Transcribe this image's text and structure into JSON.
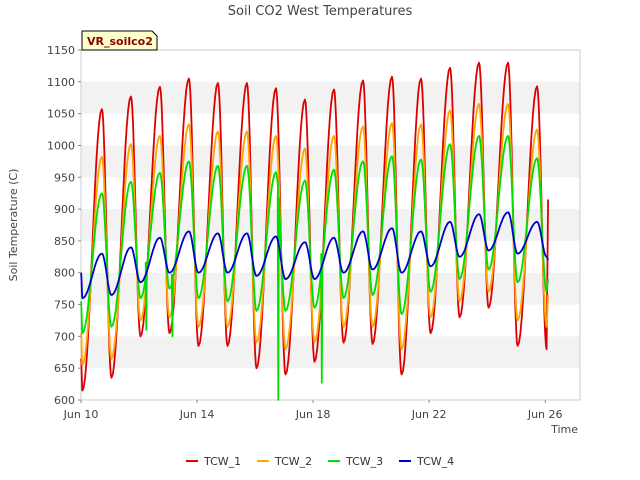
{
  "chart_data": {
    "type": "line",
    "title": "Soil CO2 West Temperatures",
    "xlabel": "Time",
    "ylabel": "Soil Temperature (C)",
    "site_tag": "VR_soilco2",
    "x_unit": "days since Jun 10",
    "xlim": [
      0,
      17.2
    ],
    "ylim": [
      600,
      1150
    ],
    "x_ticks": [
      {
        "label": "Jun 10",
        "value": 0
      },
      {
        "label": "Jun 14",
        "value": 4
      },
      {
        "label": "Jun 18",
        "value": 8
      },
      {
        "label": "Jun 22",
        "value": 12
      },
      {
        "label": "Jun 26",
        "value": 16
      }
    ],
    "y_ticks": [
      600,
      650,
      700,
      750,
      800,
      850,
      900,
      950,
      1000,
      1050,
      1100,
      1150
    ],
    "grid": "horizontal alternating bands",
    "legend_position": "bottom",
    "daily_extremes_note": "daily minima at ~day+0.05, maxima at ~day+0.72",
    "series": [
      {
        "name": "TCW_1",
        "color": "#dd0000",
        "start_value": 665,
        "minima": [
          615,
          635,
          700,
          705,
          685,
          685,
          650,
          640,
          660,
          690,
          688,
          640,
          705,
          730,
          745,
          685,
          680
        ],
        "maxima": [
          1057,
          1077,
          1092,
          1105,
          1098,
          1098,
          1090,
          1072,
          1088,
          1102,
          1108,
          1105,
          1122,
          1130,
          1130,
          1093
        ],
        "end_value": 915
      },
      {
        "name": "TCW_2",
        "color": "#ffa500",
        "start_value": 705,
        "minima": [
          655,
          665,
          725,
          730,
          715,
          715,
          690,
          680,
          690,
          715,
          715,
          680,
          730,
          755,
          770,
          725,
          715
        ],
        "maxima": [
          982,
          1002,
          1015,
          1033,
          1022,
          1022,
          1015,
          995,
          1015,
          1030,
          1035,
          1033,
          1055,
          1065,
          1065,
          1025
        ],
        "end_value": 765
      },
      {
        "name": "TCW_3",
        "color": "#00dd00",
        "start_value": 755,
        "minima": [
          705,
          715,
          760,
          775,
          760,
          755,
          740,
          740,
          745,
          760,
          765,
          735,
          770,
          790,
          805,
          785,
          770
        ],
        "maxima": [
          925,
          943,
          957,
          975,
          968,
          968,
          958,
          945,
          962,
          975,
          983,
          978,
          1002,
          1015,
          1015,
          980
        ],
        "end_value": 790,
        "spikes": [
          {
            "x": 2.25,
            "value": 710
          },
          {
            "x": 3.15,
            "value": 700
          },
          {
            "x": 6.8,
            "value": 600
          },
          {
            "x": 8.3,
            "value": 627
          }
        ]
      },
      {
        "name": "TCW_4",
        "color": "#0000cc",
        "start_value": 800,
        "minima": [
          760,
          765,
          785,
          800,
          800,
          800,
          795,
          790,
          790,
          800,
          805,
          800,
          810,
          825,
          835,
          830,
          825
        ],
        "maxima": [
          830,
          840,
          855,
          865,
          862,
          862,
          857,
          848,
          855,
          865,
          870,
          865,
          880,
          892,
          895,
          880
        ],
        "end_value": 820
      }
    ]
  }
}
